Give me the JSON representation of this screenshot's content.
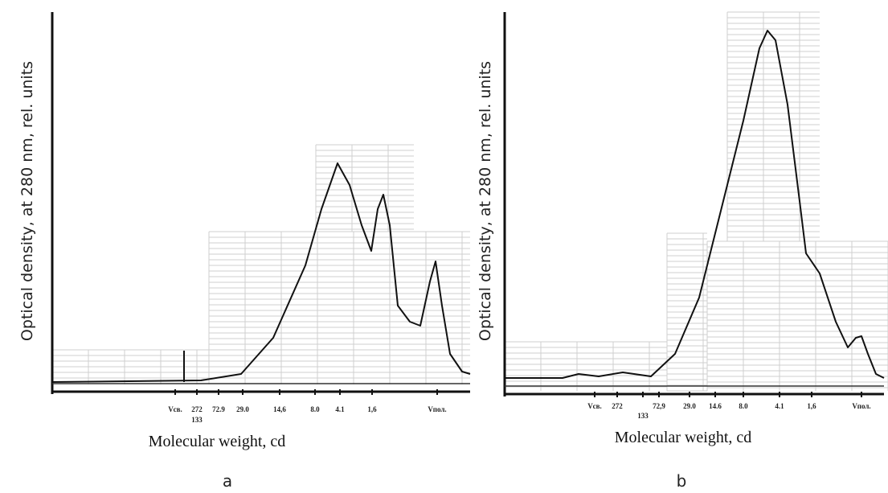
{
  "chart_data": [
    {
      "type": "line",
      "y_label": "Optical density, at 280 nm, rel. units",
      "x_label": "Molecular weight, cd",
      "categories": [
        "Vсв.",
        "272",
        "133",
        "72.9",
        "29.0",
        "14,6",
        "8.0",
        "4.1",
        "1,6",
        "Vпол."
      ],
      "panel_label": "a"
    },
    {
      "type": "line",
      "y_label": "Optical density, at 280 nm, rel. units",
      "x_label": "Molecular weight, cd",
      "categories": [
        "Vсв.",
        "272",
        "133",
        "72,9",
        "29.0",
        "14.6",
        "8.0",
        "4.1",
        "1,6",
        "Vпол."
      ],
      "panel_label": "b"
    }
  ]
}
